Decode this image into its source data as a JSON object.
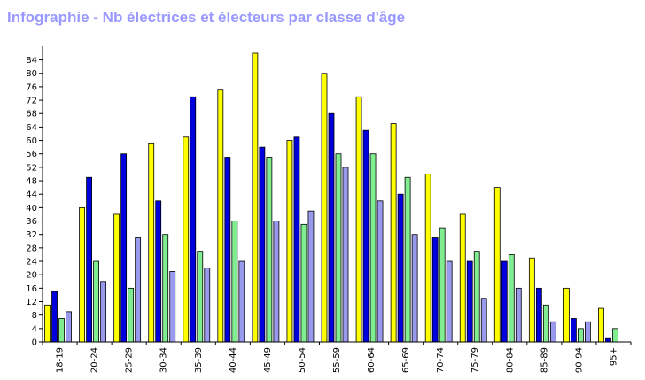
{
  "chart_data": {
    "type": "bar",
    "title": "Infographie - Nb électrices et électeurs par classe d'âge",
    "categories": [
      "18-19",
      "20-24",
      "25-29",
      "30-34",
      "35-39",
      "40-44",
      "45-49",
      "50-54",
      "55-59",
      "60-64",
      "65-69",
      "70-74",
      "75-79",
      "80-84",
      "85-89",
      "90-94",
      "95+"
    ],
    "yticks": [
      0,
      4,
      8,
      12,
      16,
      20,
      24,
      28,
      32,
      36,
      40,
      44,
      48,
      52,
      56,
      60,
      64,
      68,
      72,
      76,
      80,
      84
    ],
    "ylim": [
      0,
      86
    ],
    "grid": false,
    "legend": "none",
    "series": [
      {
        "color": "#ffff00",
        "values": [
          11,
          40,
          38,
          59,
          61,
          75,
          86,
          60,
          80,
          73,
          65,
          50,
          38,
          46,
          25,
          16,
          10
        ]
      },
      {
        "color": "#0000dd",
        "values": [
          15,
          49,
          56,
          42,
          73,
          55,
          58,
          61,
          68,
          63,
          44,
          31,
          24,
          24,
          16,
          7,
          1
        ]
      },
      {
        "color": "#80ee90",
        "values": [
          7,
          24,
          16,
          32,
          27,
          36,
          55,
          35,
          56,
          56,
          49,
          34,
          27,
          26,
          11,
          4,
          4
        ]
      },
      {
        "color": "#9999ee",
        "values": [
          9,
          18,
          31,
          21,
          22,
          24,
          36,
          39,
          52,
          42,
          32,
          24,
          13,
          16,
          6,
          6,
          0
        ]
      }
    ]
  }
}
